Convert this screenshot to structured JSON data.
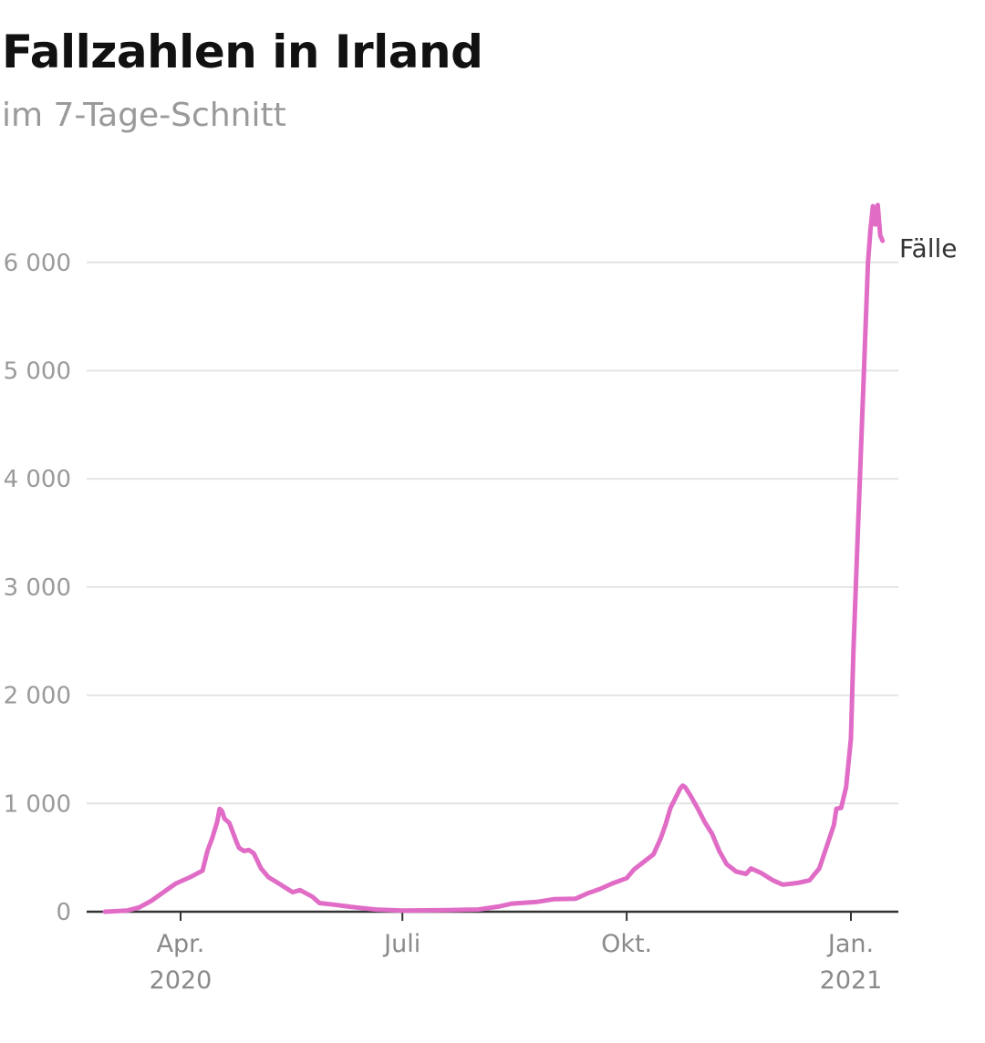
{
  "header": {
    "title": "Fallzahlen in Irland",
    "subtitle": "im 7-Tage-Schnitt"
  },
  "chart_data": {
    "type": "line",
    "title": "Fallzahlen in Irland",
    "subtitle": "im 7-Tage-Schnitt",
    "xlabel": "",
    "ylabel": "",
    "ylim": [
      0,
      6500
    ],
    "yticks": [
      {
        "value": 0,
        "label": "0"
      },
      {
        "value": 1000,
        "label": "1 000"
      },
      {
        "value": 2000,
        "label": "2 000"
      },
      {
        "value": 3000,
        "label": "3 000"
      },
      {
        "value": 4000,
        "label": "4 000"
      },
      {
        "value": 5000,
        "label": "5 000"
      },
      {
        "value": 6000,
        "label": "6 000"
      }
    ],
    "xticks": [
      {
        "date": "2020-04-01",
        "label": "Apr.",
        "sublabel": "2020"
      },
      {
        "date": "2020-07-01",
        "label": "Juli",
        "sublabel": ""
      },
      {
        "date": "2020-10-01",
        "label": "Okt.",
        "sublabel": ""
      },
      {
        "date": "2021-01-01",
        "label": "Jan.",
        "sublabel": "2021"
      }
    ],
    "grid": true,
    "series": [
      {
        "name": "Fälle",
        "color": "#e06cc6",
        "points": [
          [
            "2020-03-01",
            0
          ],
          [
            "2020-03-10",
            10
          ],
          [
            "2020-03-15",
            40
          ],
          [
            "2020-03-20",
            100
          ],
          [
            "2020-03-25",
            180
          ],
          [
            "2020-03-30",
            260
          ],
          [
            "2020-04-05",
            320
          ],
          [
            "2020-04-10",
            380
          ],
          [
            "2020-04-12",
            560
          ],
          [
            "2020-04-14",
            680
          ],
          [
            "2020-04-16",
            830
          ],
          [
            "2020-04-17",
            950
          ],
          [
            "2020-04-18",
            930
          ],
          [
            "2020-04-19",
            860
          ],
          [
            "2020-04-21",
            820
          ],
          [
            "2020-04-24",
            640
          ],
          [
            "2020-04-25",
            590
          ],
          [
            "2020-04-27",
            560
          ],
          [
            "2020-04-29",
            570
          ],
          [
            "2020-05-01",
            540
          ],
          [
            "2020-05-04",
            400
          ],
          [
            "2020-05-07",
            320
          ],
          [
            "2020-05-12",
            250
          ],
          [
            "2020-05-17",
            180
          ],
          [
            "2020-05-20",
            200
          ],
          [
            "2020-05-25",
            140
          ],
          [
            "2020-05-28",
            80
          ],
          [
            "2020-06-03",
            65
          ],
          [
            "2020-06-10",
            45
          ],
          [
            "2020-06-20",
            20
          ],
          [
            "2020-07-01",
            10
          ],
          [
            "2020-07-20",
            15
          ],
          [
            "2020-08-01",
            20
          ],
          [
            "2020-08-10",
            50
          ],
          [
            "2020-08-15",
            75
          ],
          [
            "2020-08-25",
            90
          ],
          [
            "2020-09-01",
            115
          ],
          [
            "2020-09-10",
            120
          ],
          [
            "2020-09-15",
            170
          ],
          [
            "2020-09-20",
            210
          ],
          [
            "2020-09-25",
            260
          ],
          [
            "2020-10-01",
            310
          ],
          [
            "2020-10-04",
            390
          ],
          [
            "2020-10-08",
            460
          ],
          [
            "2020-10-12",
            530
          ],
          [
            "2020-10-15",
            680
          ],
          [
            "2020-10-17",
            810
          ],
          [
            "2020-10-19",
            960
          ],
          [
            "2020-10-21",
            1050
          ],
          [
            "2020-10-23",
            1140
          ],
          [
            "2020-10-24",
            1165
          ],
          [
            "2020-10-25",
            1150
          ],
          [
            "2020-10-27",
            1080
          ],
          [
            "2020-10-30",
            960
          ],
          [
            "2020-11-02",
            830
          ],
          [
            "2020-11-05",
            720
          ],
          [
            "2020-11-08",
            560
          ],
          [
            "2020-11-11",
            440
          ],
          [
            "2020-11-15",
            370
          ],
          [
            "2020-11-19",
            350
          ],
          [
            "2020-11-21",
            400
          ],
          [
            "2020-11-25",
            360
          ],
          [
            "2020-11-30",
            290
          ],
          [
            "2020-12-04",
            250
          ],
          [
            "2020-12-08",
            260
          ],
          [
            "2020-12-11",
            270
          ],
          [
            "2020-12-15",
            290
          ],
          [
            "2020-12-19",
            400
          ],
          [
            "2020-12-22",
            600
          ],
          [
            "2020-12-25",
            800
          ],
          [
            "2020-12-26",
            950
          ],
          [
            "2020-12-28",
            960
          ],
          [
            "2020-12-30",
            1150
          ],
          [
            "2021-01-01",
            1600
          ],
          [
            "2021-01-02",
            2400
          ],
          [
            "2021-01-04",
            3600
          ],
          [
            "2021-01-06",
            4800
          ],
          [
            "2021-01-08",
            6000
          ],
          [
            "2021-01-09",
            6300
          ],
          [
            "2021-01-10",
            6520
          ],
          [
            "2021-01-11",
            6350
          ],
          [
            "2021-01-12",
            6530
          ],
          [
            "2021-01-13",
            6250
          ],
          [
            "2021-01-14",
            6200
          ]
        ]
      }
    ]
  }
}
